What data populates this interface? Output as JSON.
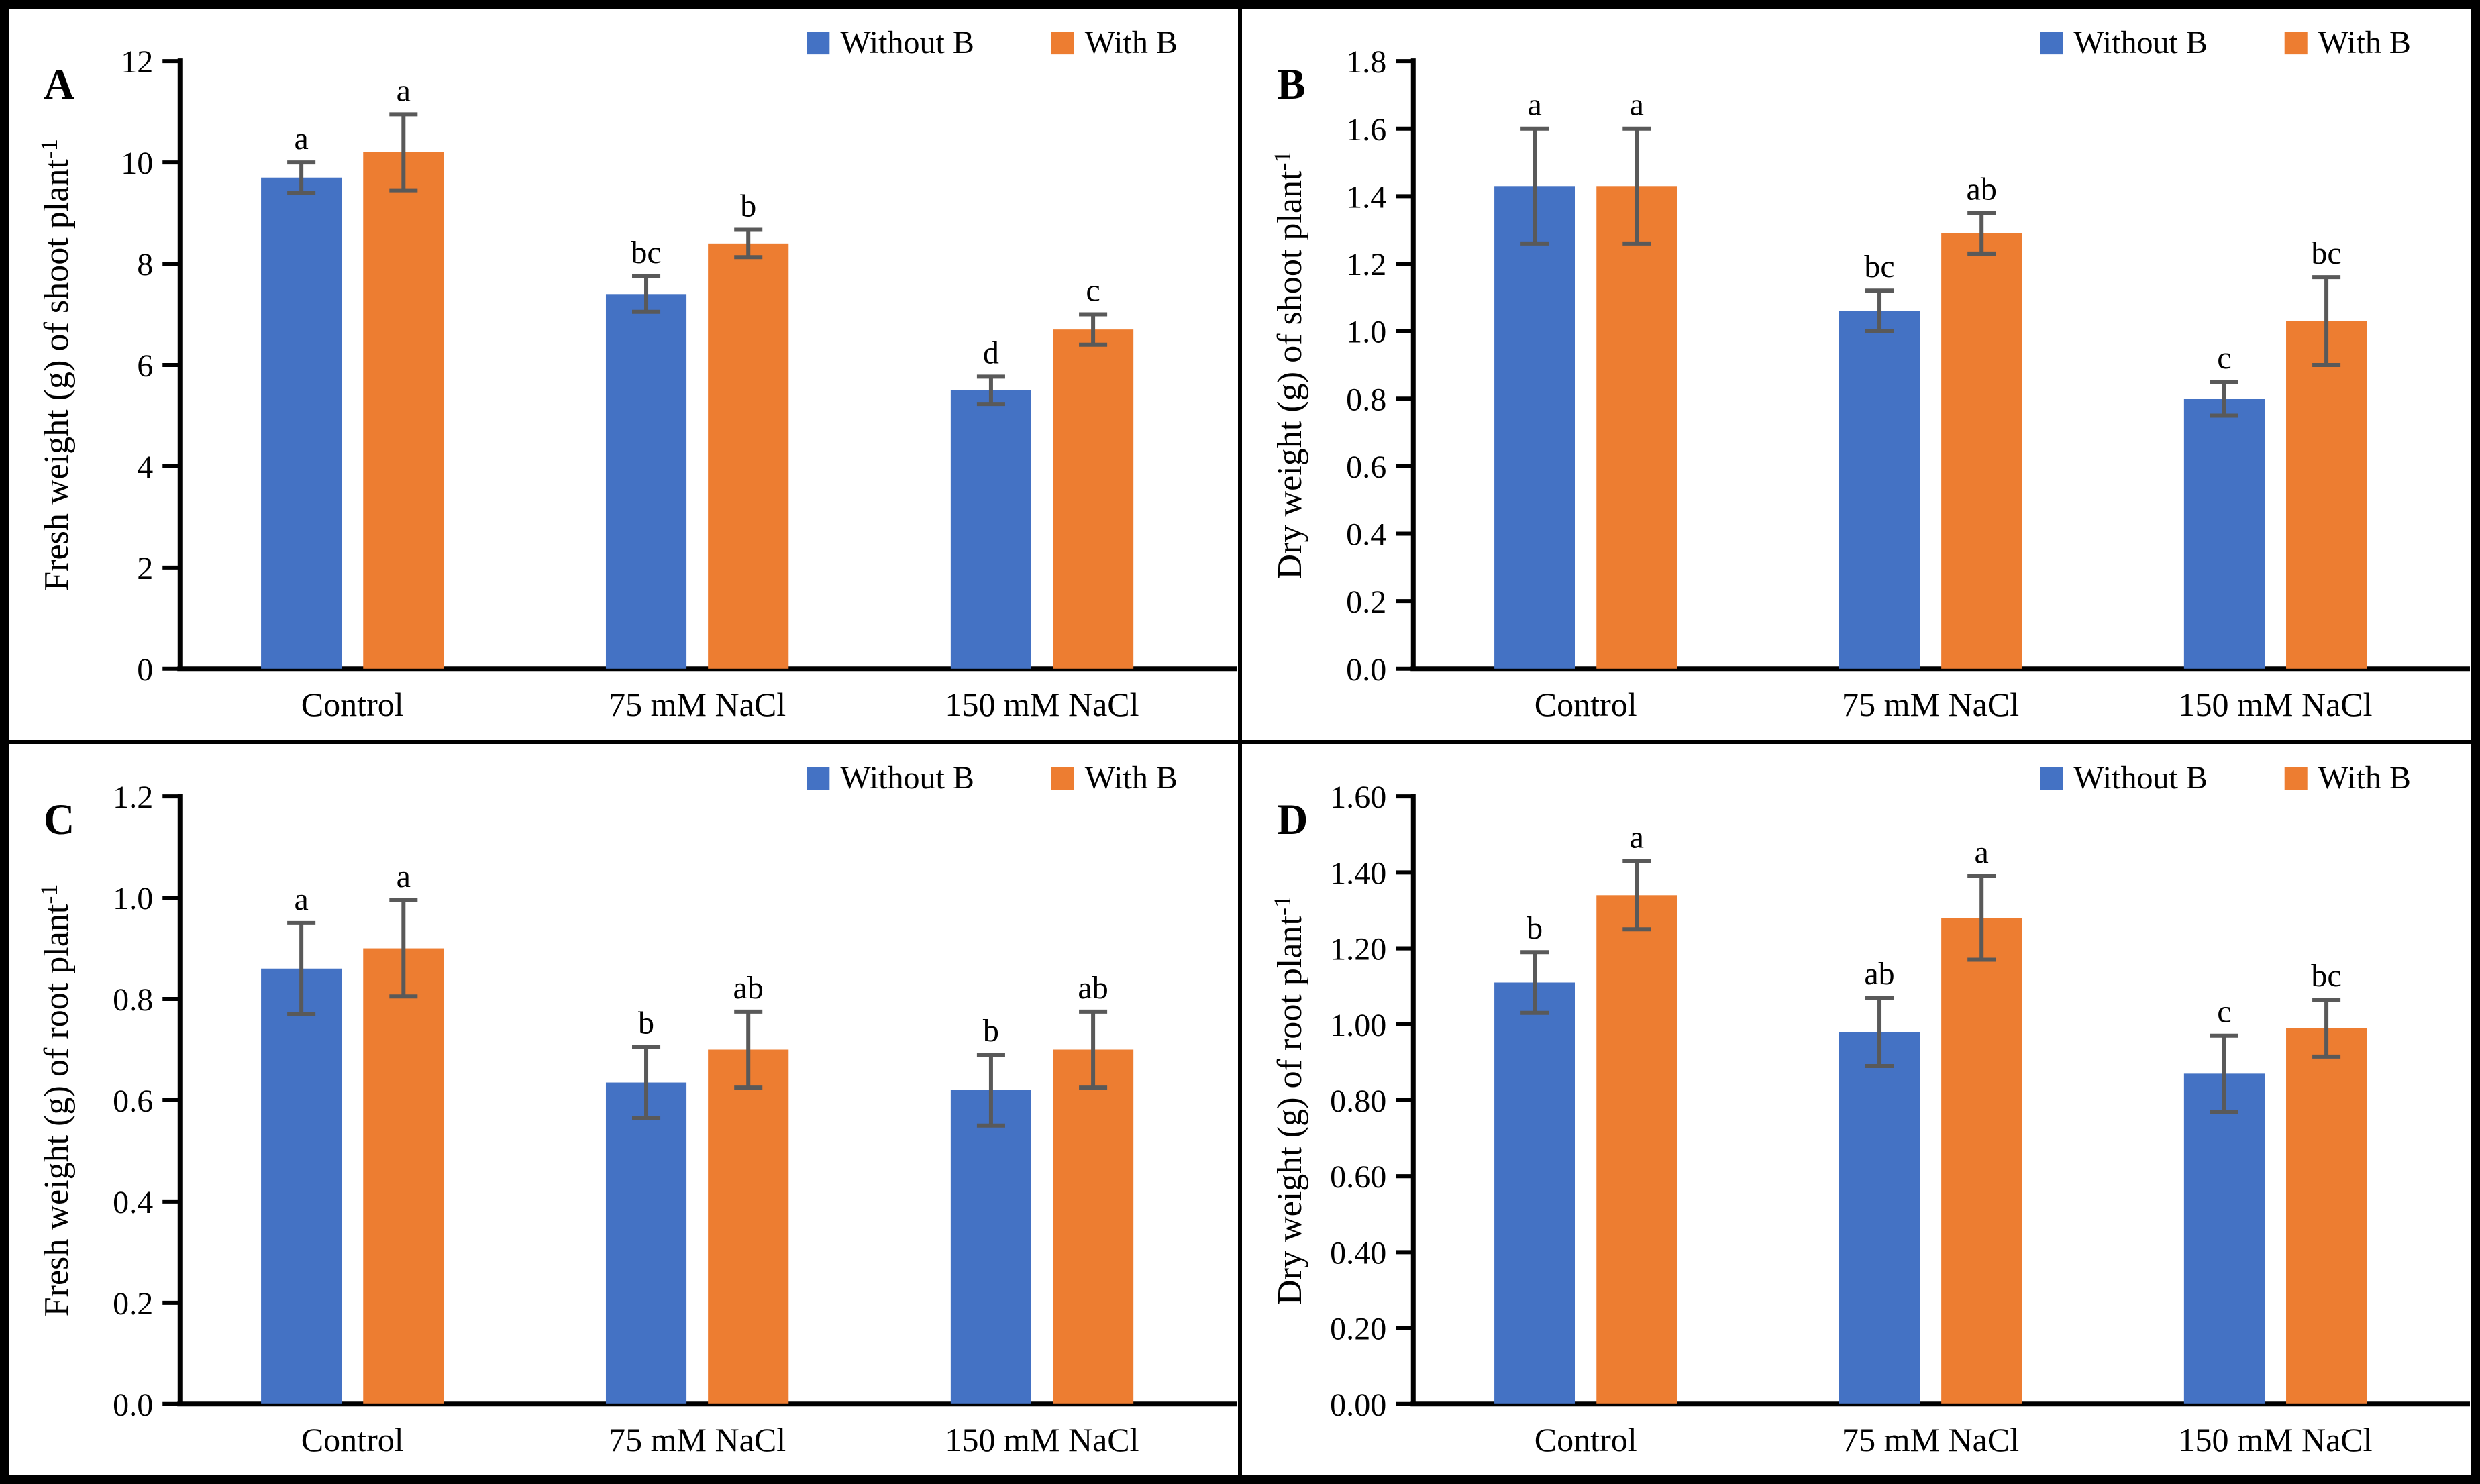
{
  "figure": {
    "legend_labels": [
      "Without B",
      "With B"
    ],
    "categories": [
      "Control",
      "75 mM NaCl",
      "150 mM NaCl"
    ],
    "colors": {
      "without_b": "#4472C4",
      "with_b": "#ED7D31",
      "error_bar": "#595959",
      "axis": "#000000",
      "border": "#000000",
      "background": "#FFFFFF"
    }
  },
  "chart_data": [
    {
      "panel": "A",
      "type": "bar",
      "title": "",
      "ylabel": "Fresh weight (g) of shoot plant⁻¹",
      "xlabel": "",
      "ylim": [
        0,
        12
      ],
      "yticks": [
        "0",
        "2",
        "4",
        "6",
        "8",
        "10",
        "12"
      ],
      "categories": [
        "Control",
        "75 mM NaCl",
        "150 mM NaCl"
      ],
      "grid": false,
      "legend_position": "top-right",
      "series": [
        {
          "name": "Without B",
          "color": "#4472C4",
          "values": [
            9.7,
            7.4,
            5.5
          ],
          "errors": [
            0.3,
            0.35,
            0.27
          ],
          "letters": [
            "a",
            "bc",
            "d"
          ]
        },
        {
          "name": "With B",
          "color": "#ED7D31",
          "values": [
            10.2,
            8.4,
            6.7
          ],
          "errors": [
            0.75,
            0.27,
            0.3
          ],
          "letters": [
            "a",
            "b",
            "c"
          ]
        }
      ]
    },
    {
      "panel": "B",
      "type": "bar",
      "title": "",
      "ylabel": "Dry weight (g) of shoot plant⁻¹",
      "xlabel": "",
      "ylim": [
        0,
        1.8
      ],
      "yticks": [
        "0.0",
        "0.2",
        "0.4",
        "0.6",
        "0.8",
        "1.0",
        "1.2",
        "1.4",
        "1.6",
        "1.8"
      ],
      "categories": [
        "Control",
        "75 mM NaCl",
        "150 mM NaCl"
      ],
      "grid": false,
      "legend_position": "top-right",
      "series": [
        {
          "name": "Without B",
          "color": "#4472C4",
          "values": [
            1.43,
            1.06,
            0.8
          ],
          "errors": [
            0.17,
            0.06,
            0.05
          ],
          "letters": [
            "a",
            "bc",
            "c"
          ]
        },
        {
          "name": "With B",
          "color": "#ED7D31",
          "values": [
            1.43,
            1.29,
            1.03
          ],
          "errors": [
            0.17,
            0.06,
            0.13
          ],
          "letters": [
            "a",
            "ab",
            "bc"
          ]
        }
      ]
    },
    {
      "panel": "C",
      "type": "bar",
      "title": "",
      "ylabel": "Fresh weight (g) of root plant⁻¹",
      "xlabel": "",
      "ylim": [
        0,
        1.2
      ],
      "yticks": [
        "0.0",
        "0.2",
        "0.4",
        "0.6",
        "0.8",
        "1.0",
        "1.2"
      ],
      "categories": [
        "Control",
        "75 mM NaCl",
        "150 mM NaCl"
      ],
      "grid": false,
      "legend_position": "top-right",
      "series": [
        {
          "name": "Without B",
          "color": "#4472C4",
          "values": [
            0.86,
            0.635,
            0.62
          ],
          "errors": [
            0.09,
            0.07,
            0.07
          ],
          "letters": [
            "a",
            "b",
            "b"
          ]
        },
        {
          "name": "With B",
          "color": "#ED7D31",
          "values": [
            0.9,
            0.7,
            0.7
          ],
          "errors": [
            0.095,
            0.075,
            0.075
          ],
          "letters": [
            "a",
            "ab",
            "ab"
          ]
        }
      ]
    },
    {
      "panel": "D",
      "type": "bar",
      "title": "",
      "ylabel": "Dry weight (g) of root plant⁻¹",
      "xlabel": "",
      "ylim": [
        0,
        1.6
      ],
      "yticks": [
        "0.00",
        "0.20",
        "0.40",
        "0.60",
        "0.80",
        "1.00",
        "1.20",
        "1.40",
        "1.60"
      ],
      "categories": [
        "Control",
        "75 mM NaCl",
        "150 mM NaCl"
      ],
      "grid": false,
      "legend_position": "top-right",
      "series": [
        {
          "name": "Without B",
          "color": "#4472C4",
          "values": [
            1.11,
            0.98,
            0.87
          ],
          "errors": [
            0.08,
            0.09,
            0.1
          ],
          "letters": [
            "b",
            "ab",
            "c"
          ]
        },
        {
          "name": "With B",
          "color": "#ED7D31",
          "values": [
            1.34,
            1.28,
            0.99
          ],
          "errors": [
            0.09,
            0.11,
            0.075
          ],
          "letters": [
            "a",
            "a",
            "bc"
          ]
        }
      ]
    }
  ]
}
